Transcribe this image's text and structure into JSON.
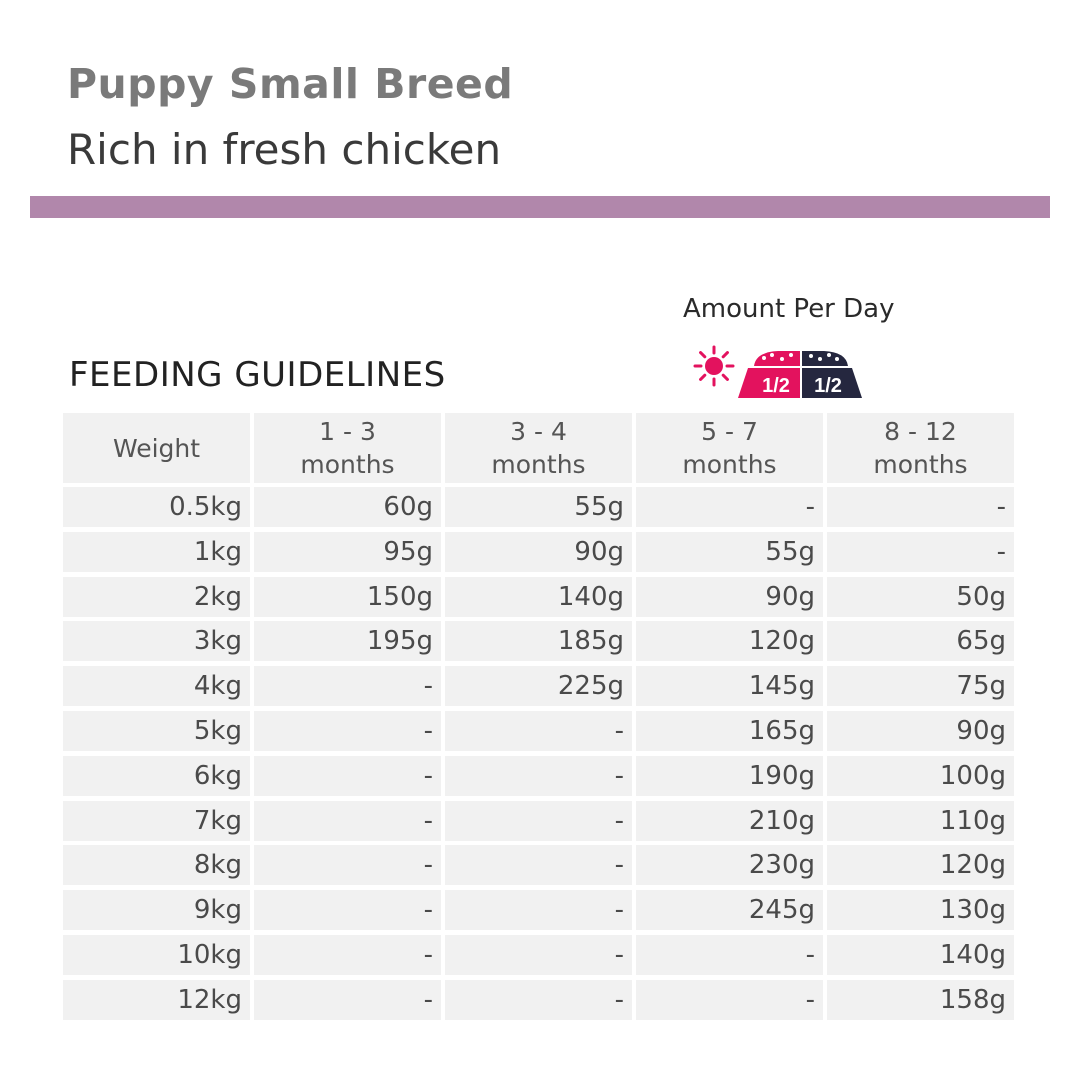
{
  "header": {
    "title": "Puppy Small Breed",
    "subtitle": "Rich in fresh chicken"
  },
  "colors": {
    "band": "#b187ab",
    "sun": "#e3125e",
    "bowl_day": "#e3125e",
    "bowl_night": "#25273f",
    "moon": "#25273f",
    "cell_bg": "#f1f1f1"
  },
  "amount_label": "Amount Per Day",
  "icons": {
    "day": "sun-icon",
    "night": "moon-icon",
    "bowl": "food-bowl-icon",
    "day_portion": "1/2",
    "night_portion": "1/2"
  },
  "section_heading": "FEEDING GUIDELINES",
  "table": {
    "headers": [
      {
        "line1": "Weight",
        "line2": ""
      },
      {
        "line1": "1 - 3",
        "line2": "months"
      },
      {
        "line1": "3 - 4",
        "line2": "months"
      },
      {
        "line1": "5 - 7",
        "line2": "months"
      },
      {
        "line1": "8 - 12",
        "line2": "months"
      }
    ],
    "rows": [
      [
        "0.5kg",
        "60g",
        "55g",
        "-",
        "-"
      ],
      [
        "1kg",
        "95g",
        "90g",
        "55g",
        "-"
      ],
      [
        "2kg",
        "150g",
        "140g",
        "90g",
        "50g"
      ],
      [
        "3kg",
        "195g",
        "185g",
        "120g",
        "65g"
      ],
      [
        "4kg",
        "-",
        "225g",
        "145g",
        "75g"
      ],
      [
        "5kg",
        "-",
        "-",
        "165g",
        "90g"
      ],
      [
        "6kg",
        "-",
        "-",
        "190g",
        "100g"
      ],
      [
        "7kg",
        "-",
        "-",
        "210g",
        "110g"
      ],
      [
        "8kg",
        "-",
        "-",
        "230g",
        "120g"
      ],
      [
        "9kg",
        "-",
        "-",
        "245g",
        "130g"
      ],
      [
        "10kg",
        "-",
        "-",
        "-",
        "140g"
      ],
      [
        "12kg",
        "-",
        "-",
        "-",
        "158g"
      ]
    ]
  }
}
